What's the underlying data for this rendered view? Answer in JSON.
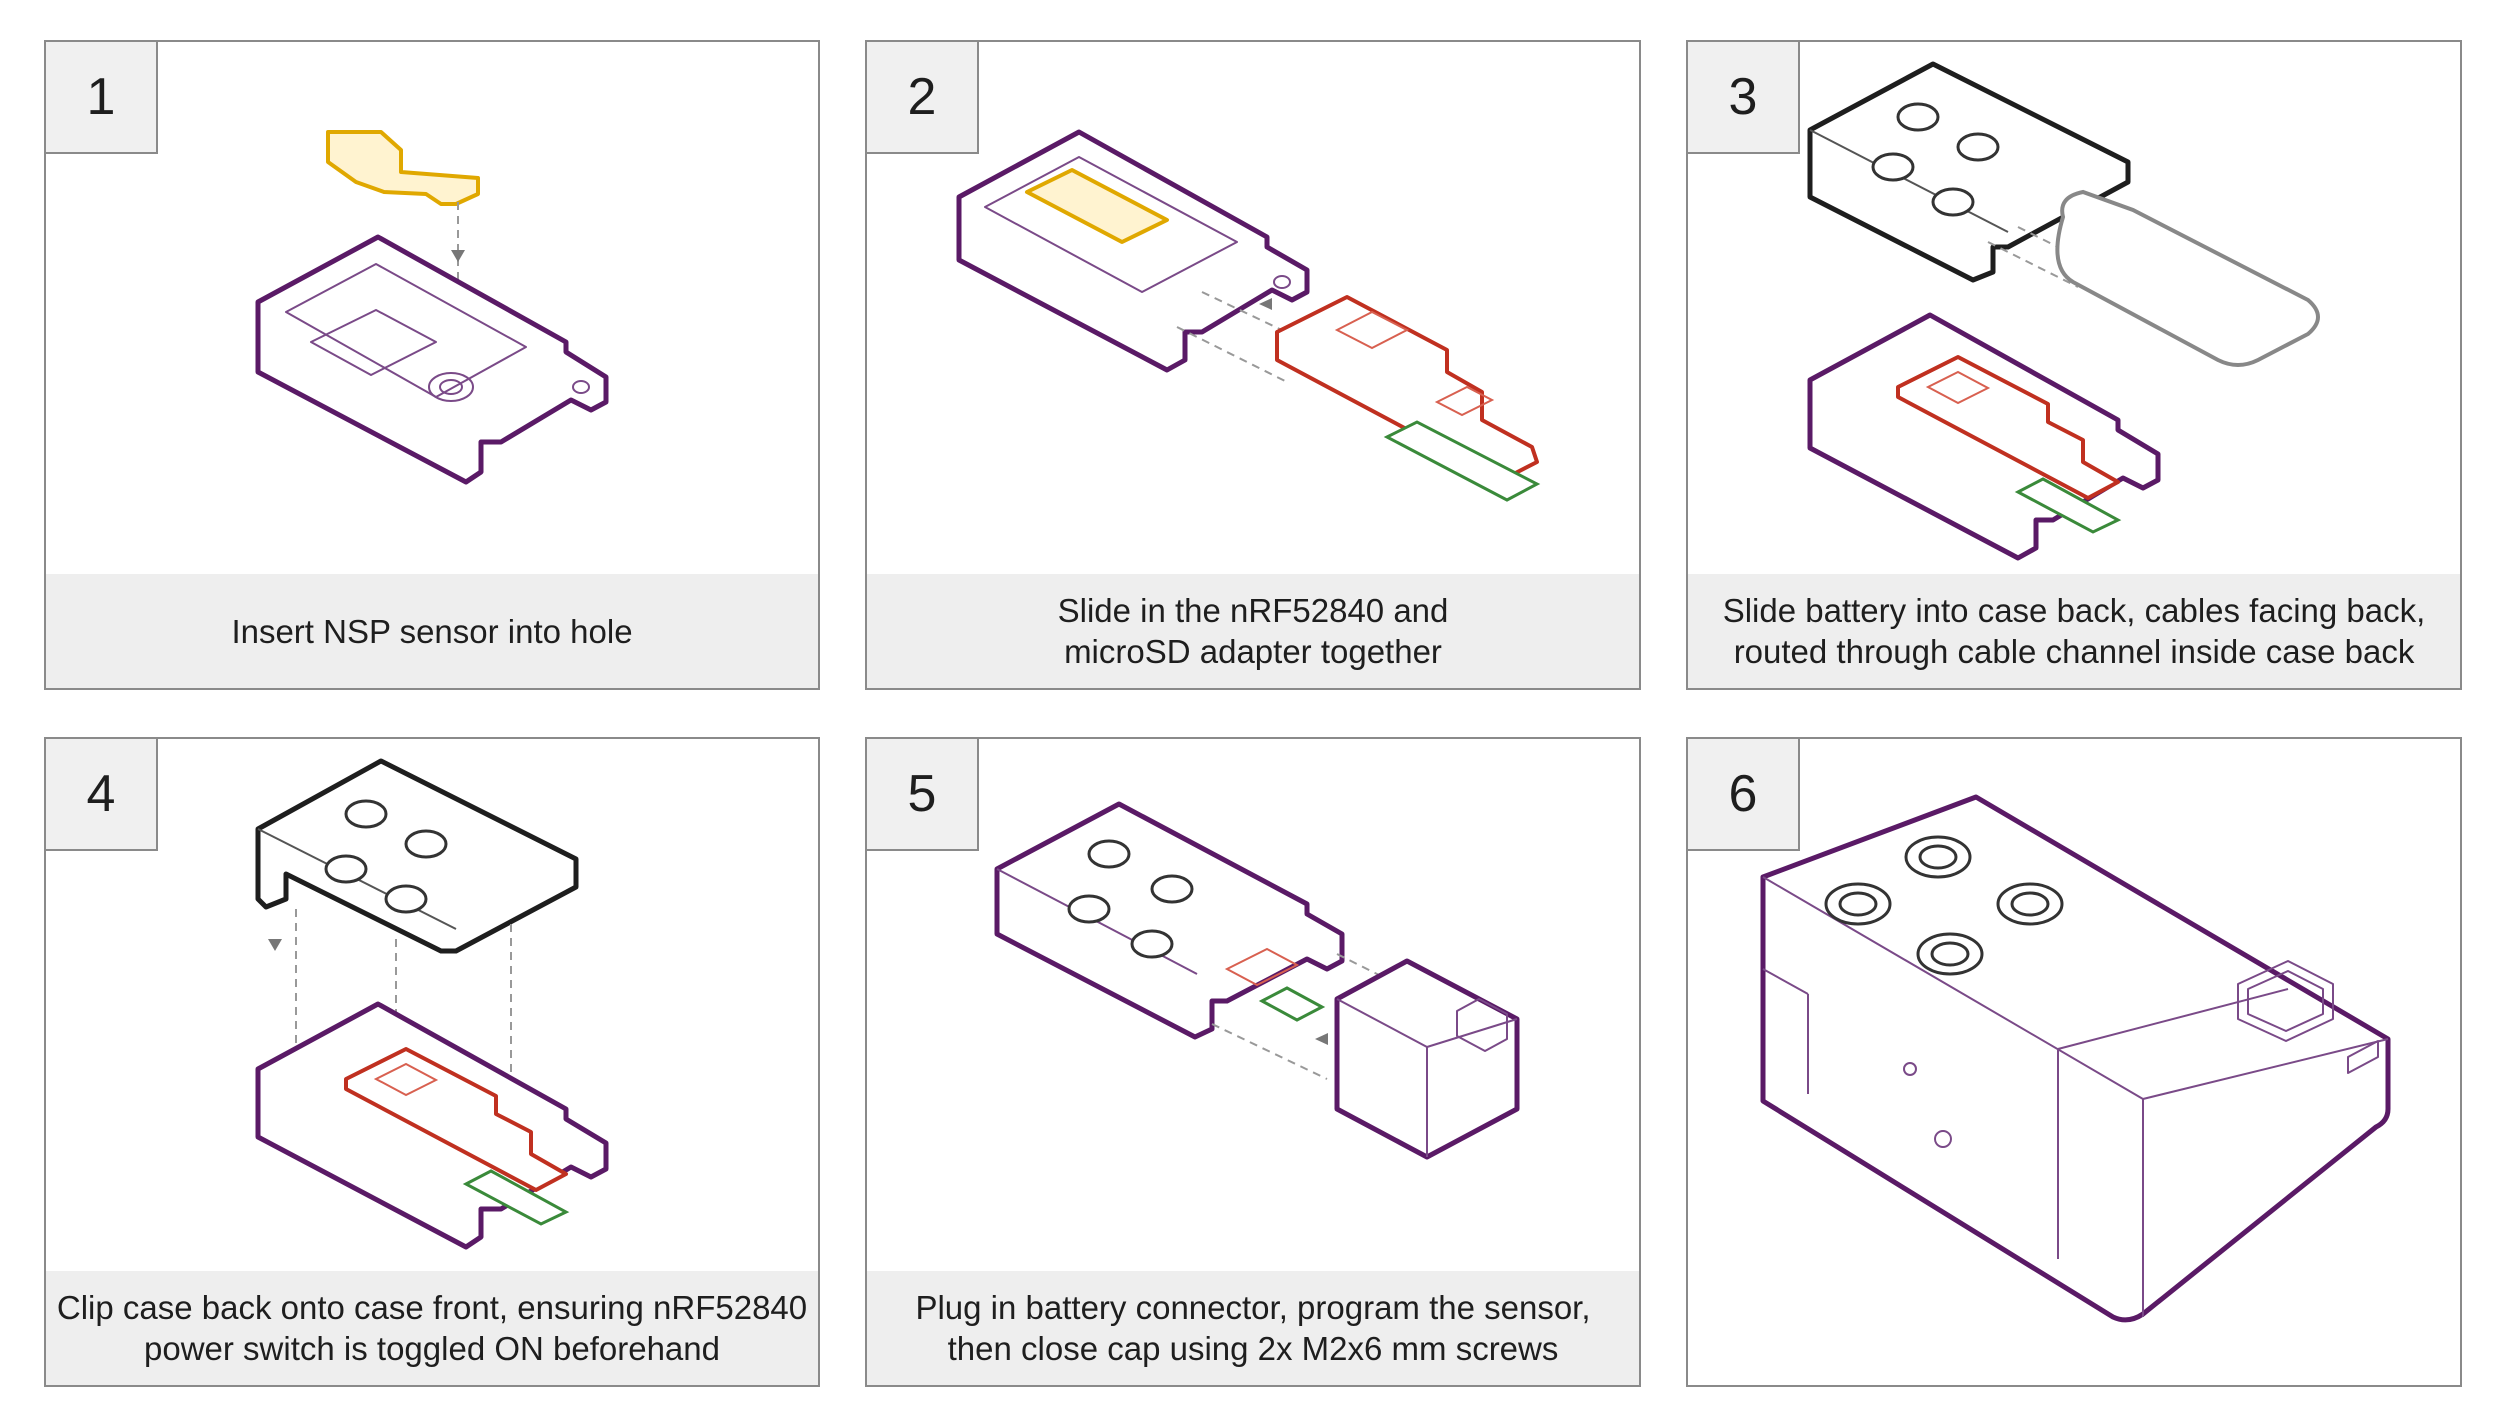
{
  "steps": [
    {
      "number": "1",
      "caption_lines": [
        "Insert NSP sensor into hole"
      ]
    },
    {
      "number": "2",
      "caption_lines": [
        "Slide in the nRF52840 and",
        "microSD adapter together"
      ]
    },
    {
      "number": "3",
      "caption_lines": [
        "Slide battery into case back, cables facing back,",
        "routed through cable channel inside case back"
      ]
    },
    {
      "number": "4",
      "caption_lines": [
        "Clip case back onto case front, ensuring nRF52840",
        "power switch is toggled ON beforehand"
      ]
    },
    {
      "number": "5",
      "caption_lines": [
        "Plug in battery connector, program the sensor,",
        "then close cap using 2x M2x6 mm screws"
      ]
    },
    {
      "number": "6",
      "caption_lines": []
    }
  ],
  "colors": {
    "case_outline": "#5a1a66",
    "lid_outline": "#1e1e1e",
    "board": "#c03020",
    "sensor": "#e0a800",
    "board_edge": "#3a8a3a",
    "battery": "#888888",
    "caption_bg": "#eeeeee"
  }
}
